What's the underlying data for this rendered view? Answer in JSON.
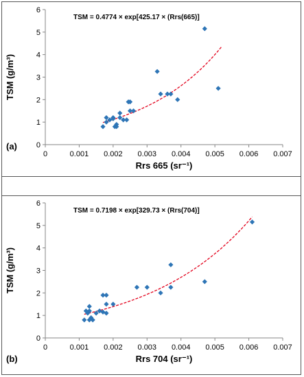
{
  "chart_data": [
    {
      "type": "scatter",
      "panel_label": "(a)",
      "xlabel": "Rrs 665 (sr⁻¹)",
      "ylabel": "TSM (g/m³)",
      "equation": "TSM = 0.4774 × exp[425.17 × (Rrs(665)]",
      "xlim": [
        0,
        0.007
      ],
      "ylim": [
        0,
        6
      ],
      "xticks": [
        "0",
        "0.001",
        "0.002",
        "0.003",
        "0.004",
        "0.005",
        "0.006",
        "0.007"
      ],
      "yticks": [
        "0",
        "1",
        "2",
        "3",
        "4",
        "5",
        "6"
      ],
      "fit": {
        "a": 0.4774,
        "b": 425.17,
        "x_start": 0.0017,
        "x_end": 0.0052
      },
      "points": [
        {
          "x": 0.0017,
          "y": 0.8
        },
        {
          "x": 0.0018,
          "y": 1.2
        },
        {
          "x": 0.0018,
          "y": 1.0
        },
        {
          "x": 0.0019,
          "y": 1.1
        },
        {
          "x": 0.002,
          "y": 1.2
        },
        {
          "x": 0.002,
          "y": 1.15
        },
        {
          "x": 0.00205,
          "y": 0.8
        },
        {
          "x": 0.0021,
          "y": 0.9
        },
        {
          "x": 0.0021,
          "y": 0.8
        },
        {
          "x": 0.0022,
          "y": 1.4
        },
        {
          "x": 0.0022,
          "y": 1.2
        },
        {
          "x": 0.0023,
          "y": 1.1
        },
        {
          "x": 0.0024,
          "y": 1.1
        },
        {
          "x": 0.00245,
          "y": 1.9
        },
        {
          "x": 0.0025,
          "y": 1.9
        },
        {
          "x": 0.0025,
          "y": 1.5
        },
        {
          "x": 0.0026,
          "y": 1.5
        },
        {
          "x": 0.0033,
          "y": 3.25
        },
        {
          "x": 0.0034,
          "y": 2.25
        },
        {
          "x": 0.0036,
          "y": 2.25
        },
        {
          "x": 0.0037,
          "y": 2.25
        },
        {
          "x": 0.0039,
          "y": 2.0
        },
        {
          "x": 0.0047,
          "y": 5.15
        },
        {
          "x": 0.0051,
          "y": 2.5
        }
      ]
    },
    {
      "type": "scatter",
      "panel_label": "(b)",
      "xlabel": "Rrs 704 (sr⁻¹)",
      "ylabel": "TSM (g/m³)",
      "equation": "TSM = 0.7198 × exp[329.73 × (Rrs(704)]",
      "xlim": [
        0,
        0.007
      ],
      "ylim": [
        0,
        6
      ],
      "xticks": [
        "0",
        "0.001",
        "0.002",
        "0.003",
        "0.004",
        "0.005",
        "0.006",
        "0.007"
      ],
      "yticks": [
        "0",
        "1",
        "2",
        "3",
        "4",
        "5",
        "6"
      ],
      "fit": {
        "a": 0.7198,
        "b": 329.73,
        "x_start": 0.00115,
        "x_end": 0.0061
      },
      "points": [
        {
          "x": 0.00115,
          "y": 0.8
        },
        {
          "x": 0.0012,
          "y": 1.2
        },
        {
          "x": 0.00125,
          "y": 1.1
        },
        {
          "x": 0.0013,
          "y": 0.8
        },
        {
          "x": 0.0013,
          "y": 1.4
        },
        {
          "x": 0.0013,
          "y": 1.2
        },
        {
          "x": 0.00135,
          "y": 0.9
        },
        {
          "x": 0.0014,
          "y": 0.8
        },
        {
          "x": 0.0015,
          "y": 1.1
        },
        {
          "x": 0.0016,
          "y": 1.2
        },
        {
          "x": 0.0017,
          "y": 1.9
        },
        {
          "x": 0.0017,
          "y": 1.15
        },
        {
          "x": 0.0018,
          "y": 1.9
        },
        {
          "x": 0.0018,
          "y": 1.5
        },
        {
          "x": 0.0018,
          "y": 1.1
        },
        {
          "x": 0.002,
          "y": 1.5
        },
        {
          "x": 0.0027,
          "y": 2.25
        },
        {
          "x": 0.003,
          "y": 2.25
        },
        {
          "x": 0.0034,
          "y": 2.0
        },
        {
          "x": 0.0037,
          "y": 3.25
        },
        {
          "x": 0.0037,
          "y": 2.25
        },
        {
          "x": 0.0047,
          "y": 2.5
        },
        {
          "x": 0.0061,
          "y": 5.15
        }
      ]
    }
  ],
  "colors": {
    "point": "#2e75b6",
    "fit": "#e3001b",
    "axis": "#868686",
    "text": "#000000"
  },
  "legend": "none",
  "grid": false
}
